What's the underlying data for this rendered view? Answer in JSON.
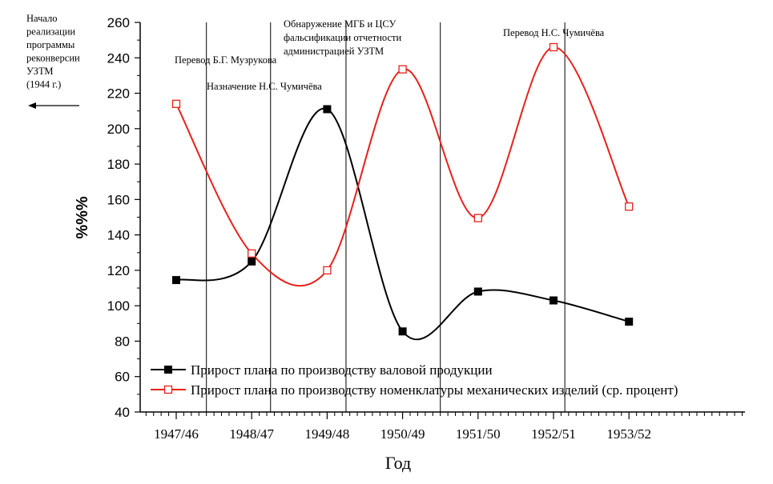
{
  "chart_data": {
    "type": "line",
    "title": "",
    "xlabel": "Год",
    "ylabel": "%%%",
    "ylim": [
      40,
      260
    ],
    "yticks": [
      40,
      60,
      80,
      100,
      120,
      140,
      160,
      180,
      200,
      220,
      240,
      260
    ],
    "categories": [
      "1947/46",
      "1948/47",
      "1949/48",
      "1950/49",
      "1951/50",
      "1952/51",
      "1953/52"
    ],
    "series": [
      {
        "name": "Прирост плана по производству валовой продукции",
        "color": "#000000",
        "marker": "filled-square",
        "values": [
          114.5,
          125,
          211,
          85.5,
          108,
          103,
          91
        ]
      },
      {
        "name": "Прирост плана по производству номенклатуры механических изделий (ср. процент)",
        "color": "#e8211b",
        "marker": "open-square",
        "values": [
          214,
          129.5,
          120,
          233.5,
          149.5,
          246,
          156
        ]
      }
    ],
    "events": [
      {
        "position": 0.4,
        "label_lines": []
      },
      {
        "position": 1.25,
        "label_lines": [
          "Перевод Б.Г. Музрукова"
        ]
      },
      {
        "position": 2.25,
        "label_lines": [
          "Назначение Н.С. Чумичёва"
        ]
      },
      {
        "position": 3.5,
        "label_lines": [
          "Обнаружение МГБ и ЦСУ",
          "фальсификации отчетности",
          "администрацией УЗТМ"
        ]
      },
      {
        "position": 5.15,
        "label_lines": [
          "Перевод Н.С. Чумичёва"
        ]
      }
    ],
    "side_note_lines": [
      "Начало",
      "реализации",
      "программы",
      "реконверсии",
      "УЗТМ",
      "(1944 г.)"
    ],
    "legend_position": "bottom-left",
    "grid": false
  }
}
